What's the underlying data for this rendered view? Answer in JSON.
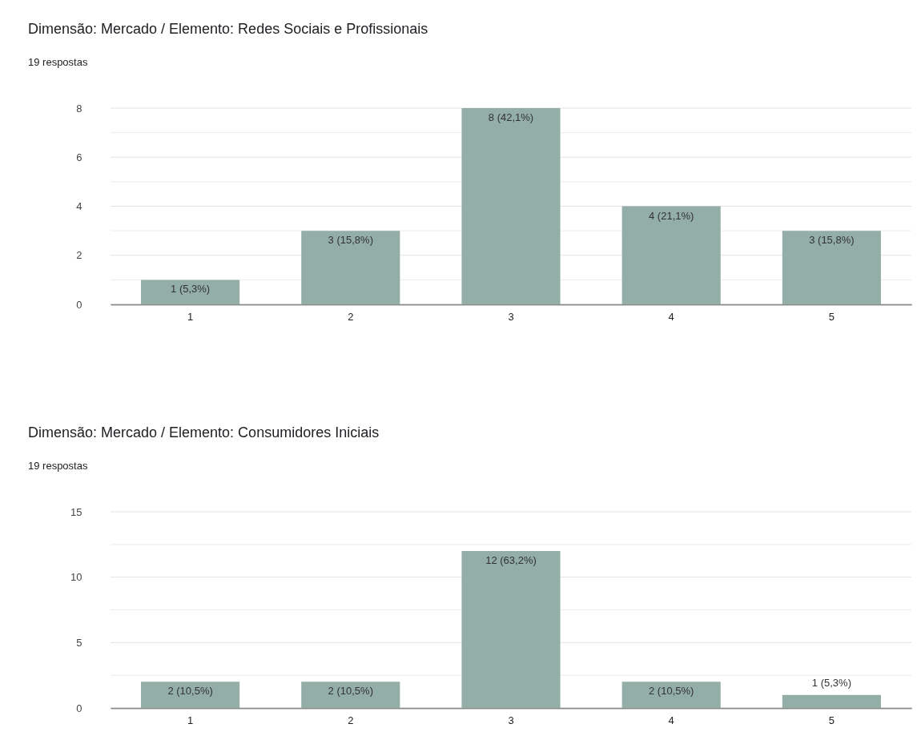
{
  "chart_data": [
    {
      "type": "bar",
      "title": "Dimensão: Mercado / Elemento: Redes Sociais e Profissionais",
      "subtitle": "19 respostas",
      "categories": [
        "1",
        "2",
        "3",
        "4",
        "5"
      ],
      "values": [
        1,
        3,
        8,
        4,
        3
      ],
      "value_labels": [
        "1 (5,3%)",
        "3 (15,8%)",
        "8 (42,1%)",
        "4 (21,1%)",
        "3 (15,8%)"
      ],
      "color": "#93ada7",
      "ylim": [
        0,
        8
      ],
      "yticks": [
        0,
        {
          "value": 1,
          "label": null
        },
        2,
        {
          "value": 3,
          "label": null
        },
        4,
        {
          "value": 5,
          "label": null
        },
        6,
        {
          "value": 7,
          "label": null
        },
        8
      ],
      "grid": "y"
    },
    {
      "type": "bar",
      "title": "Dimensão: Mercado / Elemento: Consumidores Iniciais",
      "subtitle": "19 respostas",
      "categories": [
        "1",
        "2",
        "3",
        "4",
        "5"
      ],
      "values": [
        2,
        2,
        12,
        2,
        1
      ],
      "value_labels": [
        "2 (10,5%)",
        "2 (10,5%)",
        "12 (63,2%)",
        "2 (10,5%)",
        "1 (5,3%)"
      ],
      "color": "#93ada7",
      "ylim": [
        0,
        15
      ],
      "yticks": [
        0,
        {
          "value": 2.5,
          "label": null
        },
        5,
        {
          "value": 7.5,
          "label": null
        },
        10,
        {
          "value": 12.5,
          "label": null
        },
        15
      ],
      "grid": "y"
    }
  ]
}
